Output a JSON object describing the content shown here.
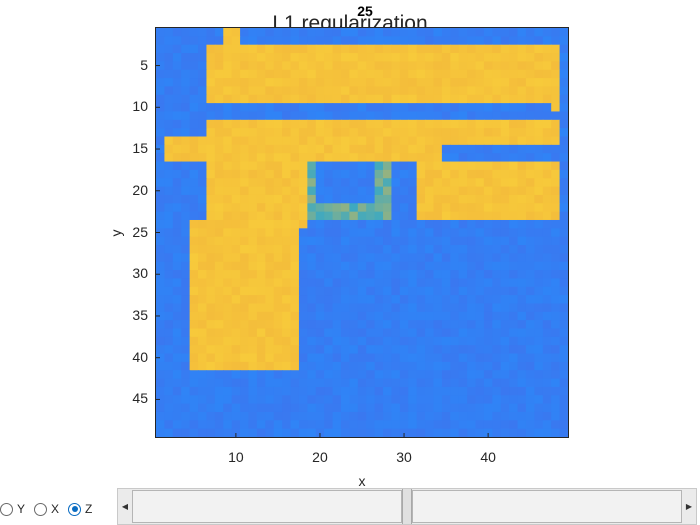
{
  "figure": {
    "title": "L1 regularization",
    "slice_label": "25"
  },
  "chart_data": {
    "type": "heatmap",
    "title": "L1 regularization",
    "xlabel": "x",
    "ylabel": "y",
    "xlim": [
      0.5,
      49.5
    ],
    "ylim": [
      0.5,
      49.5
    ],
    "y_reversed": true,
    "x_ticks": [
      10,
      20,
      30,
      40
    ],
    "y_ticks": [
      5,
      10,
      15,
      20,
      25,
      30,
      35,
      40,
      45
    ],
    "colormap": "parula",
    "background_value_color": "#3a78f0",
    "object_value_color": "#f4bd3b",
    "regions": [
      {
        "name": "slide-top",
        "x": [
          7,
          48
        ],
        "y": [
          3,
          9
        ],
        "value": 1
      },
      {
        "name": "rear-sight",
        "x": [
          9,
          10
        ],
        "y": [
          1,
          3
        ],
        "value": 1
      },
      {
        "name": "front-sight",
        "x": [
          46,
          48
        ],
        "y": [
          3,
          10
        ],
        "value": 1
      },
      {
        "name": "slide-lower",
        "x": [
          7,
          48
        ],
        "y": [
          12,
          14
        ],
        "value": 1
      },
      {
        "name": "frame",
        "x": [
          2,
          34
        ],
        "y": [
          14,
          16
        ],
        "value": 1
      },
      {
        "name": "trigger-guard-top",
        "x": [
          19,
          28
        ],
        "y": [
          15,
          17
        ],
        "value": 0.6
      },
      {
        "name": "trigger-guard-left",
        "x": [
          18,
          20
        ],
        "y": [
          17,
          23
        ],
        "value": 0.6
      },
      {
        "name": "trigger-guard-right",
        "x": [
          27,
          28
        ],
        "y": [
          17,
          23
        ],
        "value": 0.6
      },
      {
        "name": "trigger-guard-bottom",
        "x": [
          19,
          27
        ],
        "y": [
          22,
          23
        ],
        "value": 0.6
      },
      {
        "name": "grip-upper",
        "x": [
          7,
          18
        ],
        "y": [
          16,
          24
        ],
        "value": 1
      },
      {
        "name": "grip-lower",
        "x": [
          5,
          17
        ],
        "y": [
          24,
          41
        ],
        "value": 1
      },
      {
        "name": "barrel-block",
        "x": [
          32,
          48
        ],
        "y": [
          17,
          23
        ],
        "value": 1
      }
    ]
  },
  "controls": {
    "radios": [
      {
        "label": "Y",
        "checked": false
      },
      {
        "label": "X",
        "checked": false
      },
      {
        "label": "Z",
        "checked": true
      }
    ],
    "slider": {
      "value": 25,
      "min": 1,
      "max": 49,
      "left_arrow": "◀",
      "right_arrow": "▶"
    }
  }
}
